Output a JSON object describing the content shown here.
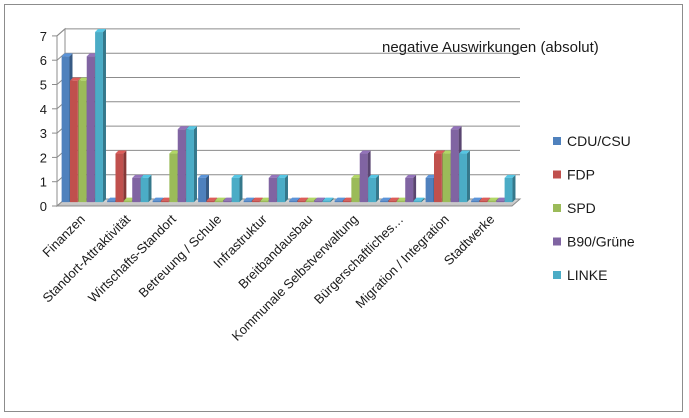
{
  "chart_data": {
    "type": "bar",
    "title": "negative Auswirkungen (absolut)",
    "categories": [
      "Finanzen",
      "Standort-Attraktivität",
      "Wirtschafts-Standort",
      "Betreuung / Schule",
      "Infrastruktur",
      "Breitbandausbau",
      "Kommunale Selbstverwaltung",
      "Bürgerschaftliches…",
      "Migration / Integration",
      "Stadtwerke"
    ],
    "series": [
      {
        "name": "CDU/CSU",
        "color": "#4f81bd",
        "values": [
          6,
          0,
          0,
          1,
          0,
          0,
          0,
          0,
          1,
          0
        ]
      },
      {
        "name": "FDP",
        "color": "#c0504d",
        "values": [
          5,
          2,
          0,
          0,
          0,
          0,
          0,
          0,
          2,
          0
        ]
      },
      {
        "name": "SPD",
        "color": "#9bbb59",
        "values": [
          5,
          0,
          2,
          0,
          0,
          0,
          1,
          0,
          2,
          0
        ]
      },
      {
        "name": "B90/Grüne",
        "color": "#8064a2",
        "values": [
          6,
          1,
          3,
          0,
          1,
          0,
          2,
          1,
          3,
          0
        ]
      },
      {
        "name": "LINKE",
        "color": "#4bacc6",
        "values": [
          7,
          1,
          3,
          1,
          1,
          0,
          1,
          0,
          2,
          1
        ]
      }
    ],
    "ylim": [
      0,
      7
    ],
    "yticks": [
      0,
      1,
      2,
      3,
      4,
      5,
      6,
      7
    ],
    "grid": true,
    "legend_position": "right"
  }
}
